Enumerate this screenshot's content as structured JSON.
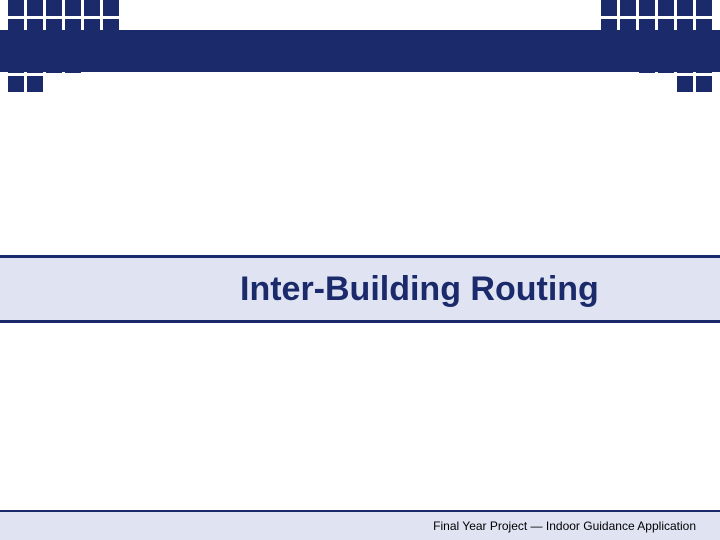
{
  "slide": {
    "title": "Inter-Building Routing",
    "footer": "Final Year Project — Indoor Guidance Application"
  },
  "theme": {
    "primary_color": "#1b2a6b",
    "band_color": "#dfe3f2",
    "background": "#ffffff",
    "title_fontsize": 34,
    "footer_fontsize": 12
  },
  "decor": {
    "square_size": 16,
    "square_gap": 3,
    "left_grid_cols": 6,
    "left_grid_rows": 5,
    "left_pattern": [
      [
        1,
        1,
        1,
        1,
        1,
        1
      ],
      [
        1,
        1,
        1,
        1,
        1,
        1
      ],
      [
        1,
        1,
        1,
        1,
        1,
        1
      ],
      [
        1,
        1,
        1,
        1,
        0,
        0
      ],
      [
        1,
        1,
        0,
        0,
        0,
        0
      ]
    ],
    "right_grid_cols": 6,
    "right_grid_rows": 5,
    "right_pattern": [
      [
        1,
        1,
        1,
        1,
        1,
        1
      ],
      [
        1,
        1,
        1,
        1,
        1,
        1
      ],
      [
        1,
        1,
        1,
        1,
        1,
        1
      ],
      [
        0,
        0,
        1,
        1,
        1,
        1
      ],
      [
        0,
        0,
        0,
        0,
        1,
        1
      ]
    ]
  }
}
